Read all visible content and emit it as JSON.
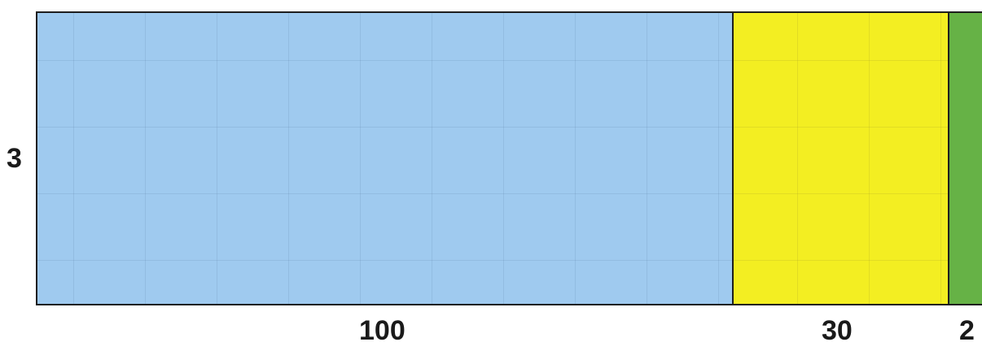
{
  "diagram": {
    "height_label": "3",
    "width_labels": [
      "100",
      "30",
      "2"
    ],
    "regions": [
      {
        "color": "#9fcaef",
        "width_label": "100"
      },
      {
        "color": "#f3ee22",
        "width_label": "30"
      },
      {
        "color": "#66b246",
        "width_label": "2"
      }
    ]
  }
}
